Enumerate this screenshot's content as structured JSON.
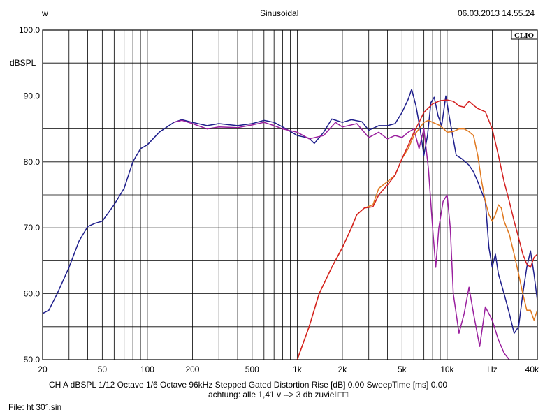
{
  "header": {
    "left": "w",
    "title": "Sinusoidal",
    "timestamp": "06.03.2013 14.55.24"
  },
  "brand": "CLIO",
  "footer": {
    "settings": "CH A   dBSPL   1/12 Octave   1/6 Octave   96kHz   Stepped   Gated   Distortion Rise [dB] 0.00   SweepTime [ms] 0.00",
    "note": "achtung: alle 1,41 v --> 3 db zuviell□□",
    "file": "File: ht 30°.sin"
  },
  "chart_data": {
    "type": "line",
    "ylabel": "dBSPL",
    "xlabel_unit": "Hz",
    "xscale": "log",
    "xlim": [
      20,
      40000
    ],
    "ylim": [
      50,
      100
    ],
    "grid": true,
    "y_ticks": [
      {
        "value": 100,
        "label": "100.0"
      },
      {
        "value": 90,
        "label": "90.0"
      },
      {
        "value": 80,
        "label": "80.0"
      },
      {
        "value": 70,
        "label": "70.0"
      },
      {
        "value": 60,
        "label": "60.0"
      },
      {
        "value": 50,
        "label": "50.0"
      }
    ],
    "x_ticks": [
      {
        "value": 20,
        "label": "20"
      },
      {
        "value": 50,
        "label": "50"
      },
      {
        "value": 100,
        "label": "100"
      },
      {
        "value": 200,
        "label": "200"
      },
      {
        "value": 500,
        "label": "500"
      },
      {
        "value": 1000,
        "label": "1k"
      },
      {
        "value": 2000,
        "label": "2k"
      },
      {
        "value": 5000,
        "label": "5k"
      },
      {
        "value": 10000,
        "label": "10k"
      },
      {
        "value": 20000,
        "label": "Hz"
      },
      {
        "value": 40000,
        "label": "40k"
      }
    ],
    "series": [
      {
        "color": "#1e1e8c",
        "points": [
          [
            20,
            57
          ],
          [
            22,
            57.5
          ],
          [
            25,
            60
          ],
          [
            30,
            64
          ],
          [
            35,
            68
          ],
          [
            40,
            70.2
          ],
          [
            45,
            70.7
          ],
          [
            50,
            71
          ],
          [
            60,
            73.5
          ],
          [
            70,
            76
          ],
          [
            80,
            80
          ],
          [
            90,
            82
          ],
          [
            100,
            82.6
          ],
          [
            120,
            84.5
          ],
          [
            150,
            86
          ],
          [
            170,
            86.4
          ],
          [
            200,
            86
          ],
          [
            250,
            85.5
          ],
          [
            300,
            85.8
          ],
          [
            400,
            85.5
          ],
          [
            500,
            85.8
          ],
          [
            600,
            86.3
          ],
          [
            700,
            86
          ],
          [
            800,
            85.3
          ],
          [
            1000,
            84
          ],
          [
            1200,
            83.6
          ],
          [
            1300,
            82.8
          ],
          [
            1500,
            84.5
          ],
          [
            1700,
            86.5
          ],
          [
            2000,
            86
          ],
          [
            2300,
            86.4
          ],
          [
            2700,
            86.1
          ],
          [
            3000,
            84.8
          ],
          [
            3500,
            85.5
          ],
          [
            4000,
            85.5
          ],
          [
            4500,
            85.8
          ],
          [
            5000,
            87.5
          ],
          [
            5500,
            89.5
          ],
          [
            5800,
            91
          ],
          [
            6200,
            88.5
          ],
          [
            6600,
            85
          ],
          [
            7000,
            81
          ],
          [
            7400,
            84
          ],
          [
            7800,
            89
          ],
          [
            8200,
            89.8
          ],
          [
            8700,
            87
          ],
          [
            9200,
            85.5
          ],
          [
            9800,
            90
          ],
          [
            10500,
            86
          ],
          [
            11500,
            81
          ],
          [
            12500,
            80.5
          ],
          [
            14000,
            79.5
          ],
          [
            15000,
            78.5
          ],
          [
            16000,
            77
          ],
          [
            18000,
            74
          ],
          [
            19000,
            67
          ],
          [
            20000,
            64
          ],
          [
            21000,
            66
          ],
          [
            22000,
            63
          ],
          [
            24000,
            60
          ],
          [
            26000,
            57
          ],
          [
            28000,
            54
          ],
          [
            30000,
            55
          ],
          [
            32000,
            60
          ],
          [
            34000,
            64
          ],
          [
            36000,
            66.5
          ],
          [
            38000,
            63
          ],
          [
            40000,
            59
          ]
        ]
      },
      {
        "color": "#9a1f9e",
        "points": [
          [
            150,
            86
          ],
          [
            170,
            86.3
          ],
          [
            200,
            85.8
          ],
          [
            250,
            85
          ],
          [
            300,
            85.3
          ],
          [
            400,
            85.2
          ],
          [
            500,
            85.6
          ],
          [
            600,
            86
          ],
          [
            700,
            85.5
          ],
          [
            800,
            85
          ],
          [
            1000,
            84.5
          ],
          [
            1200,
            83.5
          ],
          [
            1500,
            84
          ],
          [
            1800,
            86
          ],
          [
            2000,
            85.3
          ],
          [
            2500,
            85.8
          ],
          [
            3000,
            83.7
          ],
          [
            3500,
            84.5
          ],
          [
            4000,
            83.5
          ],
          [
            4500,
            84
          ],
          [
            5000,
            83.7
          ],
          [
            5500,
            84.5
          ],
          [
            6000,
            85
          ],
          [
            6500,
            82
          ],
          [
            7000,
            85
          ],
          [
            7500,
            79
          ],
          [
            8000,
            70
          ],
          [
            8400,
            64
          ],
          [
            8800,
            70
          ],
          [
            9400,
            74
          ],
          [
            10000,
            75
          ],
          [
            10500,
            70
          ],
          [
            11000,
            60
          ],
          [
            12000,
            54
          ],
          [
            13000,
            57
          ],
          [
            14000,
            61
          ],
          [
            15000,
            57
          ],
          [
            16500,
            52
          ],
          [
            18000,
            58
          ],
          [
            20000,
            56
          ],
          [
            22000,
            53
          ],
          [
            24000,
            51
          ],
          [
            26000,
            50
          ]
        ]
      },
      {
        "color": "#e0781e",
        "points": [
          [
            1000,
            50
          ],
          [
            1200,
            55
          ],
          [
            1400,
            60
          ],
          [
            1700,
            64
          ],
          [
            2000,
            67
          ],
          [
            2300,
            70
          ],
          [
            2500,
            72
          ],
          [
            2800,
            73
          ],
          [
            3200,
            73.5
          ],
          [
            3500,
            76
          ],
          [
            4000,
            77
          ],
          [
            4500,
            78
          ],
          [
            5000,
            80.5
          ],
          [
            5500,
            82
          ],
          [
            6000,
            84
          ],
          [
            6500,
            85
          ],
          [
            7000,
            86
          ],
          [
            7500,
            86.3
          ],
          [
            8000,
            86
          ],
          [
            9000,
            85.5
          ],
          [
            10000,
            84.5
          ],
          [
            11000,
            84.6
          ],
          [
            12000,
            85
          ],
          [
            13000,
            85
          ],
          [
            14000,
            84.6
          ],
          [
            15000,
            84
          ],
          [
            16000,
            81
          ],
          [
            17000,
            77
          ],
          [
            18000,
            74
          ],
          [
            19000,
            72
          ],
          [
            20000,
            71
          ],
          [
            21000,
            72
          ],
          [
            22000,
            73.5
          ],
          [
            23000,
            73
          ],
          [
            24000,
            71
          ],
          [
            26000,
            69
          ],
          [
            28000,
            66
          ],
          [
            30000,
            63
          ],
          [
            32000,
            60
          ],
          [
            34000,
            57.5
          ],
          [
            36000,
            57.5
          ],
          [
            38000,
            56
          ],
          [
            40000,
            57.5
          ]
        ]
      },
      {
        "color": "#d42020",
        "points": [
          [
            1000,
            50
          ],
          [
            1200,
            55
          ],
          [
            1400,
            60
          ],
          [
            1700,
            64
          ],
          [
            2000,
            67
          ],
          [
            2300,
            70
          ],
          [
            2500,
            72
          ],
          [
            2800,
            73
          ],
          [
            3200,
            73.2
          ],
          [
            3500,
            75
          ],
          [
            4000,
            76.5
          ],
          [
            4500,
            78
          ],
          [
            5000,
            80.5
          ],
          [
            5500,
            82.5
          ],
          [
            6000,
            84.5
          ],
          [
            6500,
            86
          ],
          [
            7000,
            87.5
          ],
          [
            8000,
            88.8
          ],
          [
            9000,
            89.3
          ],
          [
            10000,
            89.4
          ],
          [
            11000,
            89.2
          ],
          [
            12000,
            88.5
          ],
          [
            13000,
            88.3
          ],
          [
            14000,
            89.2
          ],
          [
            15000,
            88.6
          ],
          [
            16000,
            88.1
          ],
          [
            18000,
            87.6
          ],
          [
            20000,
            85
          ],
          [
            22000,
            81
          ],
          [
            24000,
            77
          ],
          [
            26000,
            74
          ],
          [
            28000,
            71
          ],
          [
            30000,
            68.5
          ],
          [
            32000,
            66
          ],
          [
            34000,
            64.5
          ],
          [
            36000,
            64
          ],
          [
            38000,
            65.5
          ],
          [
            40000,
            66
          ]
        ]
      }
    ]
  }
}
